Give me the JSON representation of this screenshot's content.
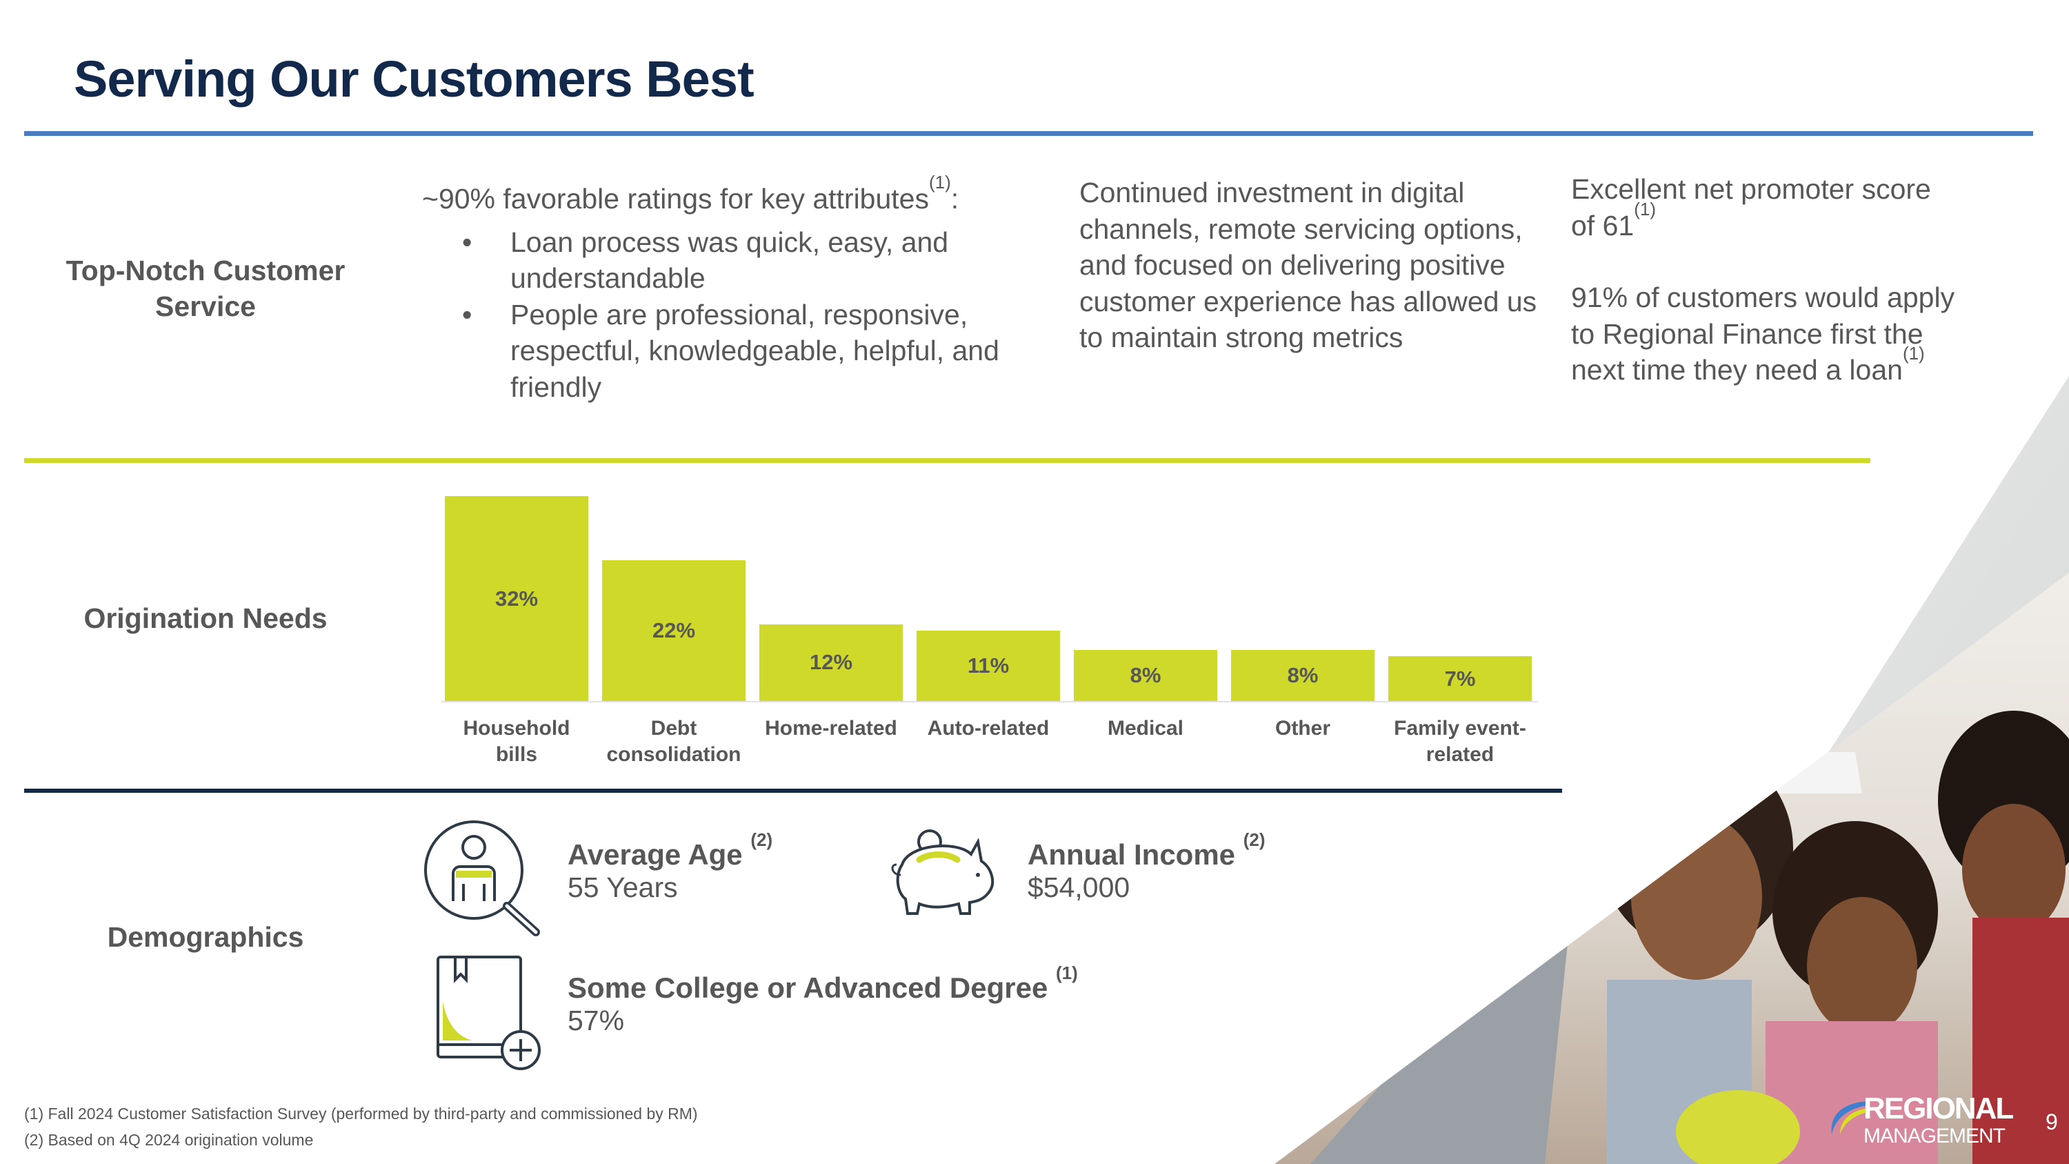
{
  "title": "Serving Our Customers Best",
  "colors": {
    "navy": "#13294b",
    "blue_rule": "#4a7cc0",
    "accent_green": "#cfd92a",
    "text_gray": "#575757"
  },
  "customer_service": {
    "label": "Top-Notch Customer Service",
    "ratings_intro": "~90% favorable ratings for key attributes",
    "ratings_intro_note": "(1)",
    "ratings_intro_suffix": ":",
    "bullets": [
      "Loan process was quick, easy, and understandable",
      "People are professional, responsive, respectful, knowledgeable, helpful, and friendly"
    ],
    "investment_text": "Continued investment in digital channels, remote servicing options, and focused on delivering positive customer experience has allowed us to maintain strong metrics",
    "nps_text": "Excellent net promoter score of 61",
    "nps_note": "(1)",
    "repeat_text": "91% of customers would apply to Regional Finance first the next time they need a loan",
    "repeat_note": "(1)"
  },
  "origination": {
    "label": "Origination Needs"
  },
  "chart_data": {
    "type": "bar",
    "categories": [
      "Household bills",
      "Debt consolidation",
      "Home-related",
      "Auto-related",
      "Medical",
      "Other",
      "Family event-related"
    ],
    "values": [
      32,
      22,
      12,
      11,
      8,
      8,
      7
    ],
    "value_labels": [
      "32%",
      "22%",
      "12%",
      "11%",
      "8%",
      "8%",
      "7%"
    ],
    "unit": "%",
    "color": "#cfd92a",
    "grid": false
  },
  "demographics": {
    "label": "Demographics",
    "items": [
      {
        "title": "Average Age",
        "note": "(2)",
        "value": "55 Years",
        "icon": "person-magnifier-icon"
      },
      {
        "title": "Annual Income",
        "note": "(2)",
        "value": "$54,000",
        "icon": "piggy-bank-icon"
      },
      {
        "title": "Some College or Advanced Degree",
        "note": "(1)",
        "value": "57%",
        "icon": "book-plus-icon"
      }
    ]
  },
  "footnotes": [
    "(1) Fall 2024 Customer Satisfaction Survey (performed by third-party and commissioned by RM)",
    "(2) Based on 4Q 2024 origination volume"
  ],
  "logo": {
    "line1": "REGIONAL",
    "line2": "MANAGEMENT"
  },
  "page_number": "9"
}
